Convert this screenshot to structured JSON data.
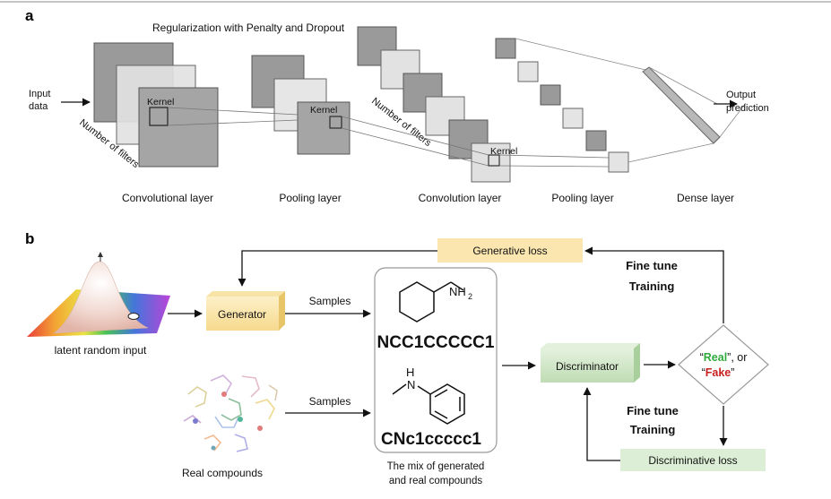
{
  "panel_a": {
    "letter": "a",
    "title": "Regularization with Penalty and Dropout",
    "input_label_1": "Input",
    "input_label_2": "data",
    "output_label_1": "Output",
    "output_label_2": "prediction",
    "kernel_label": "Kernel",
    "filters_label": "Number of filters",
    "layers": [
      "Convolutional layer",
      "Pooling layer",
      "Convolution layer",
      "Pooling layer",
      "Dense layer"
    ]
  },
  "panel_b": {
    "letter": "b",
    "latent_label": "latent random input",
    "real_label": "Real compounds",
    "generator": "Generator",
    "samples_1": "Samples",
    "samples_2": "Samples",
    "smiles_1": "NCC1CCCCC1",
    "smiles_2": "CNc1ccccc1",
    "nh2_label": "NH",
    "nh2_sub": "2",
    "nh_label": "H",
    "nh_n": "N",
    "mix_label_1": "The mix of generated",
    "mix_label_2": "and real compounds",
    "discriminator": "Discriminator",
    "generative_loss": "Generative loss",
    "discriminative_loss": "Discriminative loss",
    "fine_tune_1": "Fine tune",
    "training_1": "Training",
    "fine_tune_2": "Fine tune",
    "training_2": "Training",
    "decision_open": "“",
    "decision_real": "Real",
    "decision_mid": "”, or",
    "decision_open2": "“",
    "decision_fake": "Fake",
    "decision_close": "”",
    "colors": {
      "real": "#2eaa3c",
      "fake": "#c82020",
      "generator_fill": "#fbe8b6",
      "discriminator_fill": "#d7ecd0",
      "gen_loss_fill": "#fbe6b0",
      "disc_loss_fill": "#dcefd6"
    }
  }
}
